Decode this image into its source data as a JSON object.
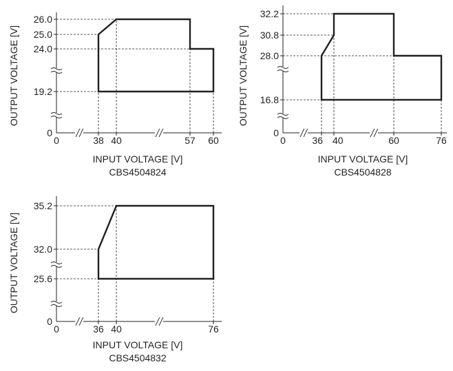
{
  "chart_data": [
    {
      "type": "line",
      "model": "CBS4504824",
      "xlabel": "INPUT VOLTAGE [V]",
      "ylabel": "OUTPUT VOLTAGE [V]",
      "x_ticks": [
        "0",
        "38",
        "40",
        "57",
        "60"
      ],
      "y_ticks": [
        "0",
        "19.2",
        "24.0",
        "25.0",
        "26.0"
      ],
      "x_breaks": [
        "0-38",
        "40-57"
      ],
      "y_breaks": [
        "0-19.2",
        "19.2-24.0"
      ],
      "series": [
        {
          "values": [
            {
              "x": 38,
              "y": 19.2
            },
            {
              "x": 38,
              "y": 25.0
            },
            {
              "x": 40,
              "y": 26.0
            },
            {
              "x": 57,
              "y": 26.0
            },
            {
              "x": 57,
              "y": 24.0
            },
            {
              "x": 60,
              "y": 24.0
            },
            {
              "x": 60,
              "y": 19.2
            },
            {
              "x": 38,
              "y": 19.2
            }
          ]
        }
      ]
    },
    {
      "type": "line",
      "model": "CBS4504828",
      "xlabel": "INPUT VOLTAGE [V]",
      "ylabel": "OUTPUT VOLTAGE [V]",
      "x_ticks": [
        "0",
        "36",
        "40",
        "60",
        "76"
      ],
      "y_ticks": [
        "0",
        "16.8",
        "28.0",
        "30.8",
        "32.2"
      ],
      "x_breaks": [
        "0-36",
        "40-60"
      ],
      "y_breaks": [
        "0-16.8",
        "16.8-28.0"
      ],
      "series": [
        {
          "values": [
            {
              "x": 36,
              "y": 16.8
            },
            {
              "x": 36,
              "y": 28.0
            },
            {
              "x": 40,
              "y": 30.8
            },
            {
              "x": 40,
              "y": 32.2
            },
            {
              "x": 60,
              "y": 32.2
            },
            {
              "x": 60,
              "y": 28.0
            },
            {
              "x": 76,
              "y": 28.0
            },
            {
              "x": 76,
              "y": 16.8
            },
            {
              "x": 36,
              "y": 16.8
            }
          ]
        }
      ]
    },
    {
      "type": "line",
      "model": "CBS4504832",
      "xlabel": "INPUT VOLTAGE [V]",
      "ylabel": "OUTPUT VOLTAGE [V]",
      "x_ticks": [
        "0",
        "36",
        "40",
        "76"
      ],
      "y_ticks": [
        "0",
        "25.6",
        "32.0",
        "35.2"
      ],
      "x_breaks": [
        "0-36",
        "40-76"
      ],
      "y_breaks": [
        "0-25.6",
        "25.6-32.0"
      ],
      "series": [
        {
          "values": [
            {
              "x": 36,
              "y": 25.6
            },
            {
              "x": 36,
              "y": 32.0
            },
            {
              "x": 40,
              "y": 35.2
            },
            {
              "x": 76,
              "y": 35.2
            },
            {
              "x": 76,
              "y": 25.6
            },
            {
              "x": 36,
              "y": 25.6
            }
          ]
        }
      ]
    }
  ]
}
